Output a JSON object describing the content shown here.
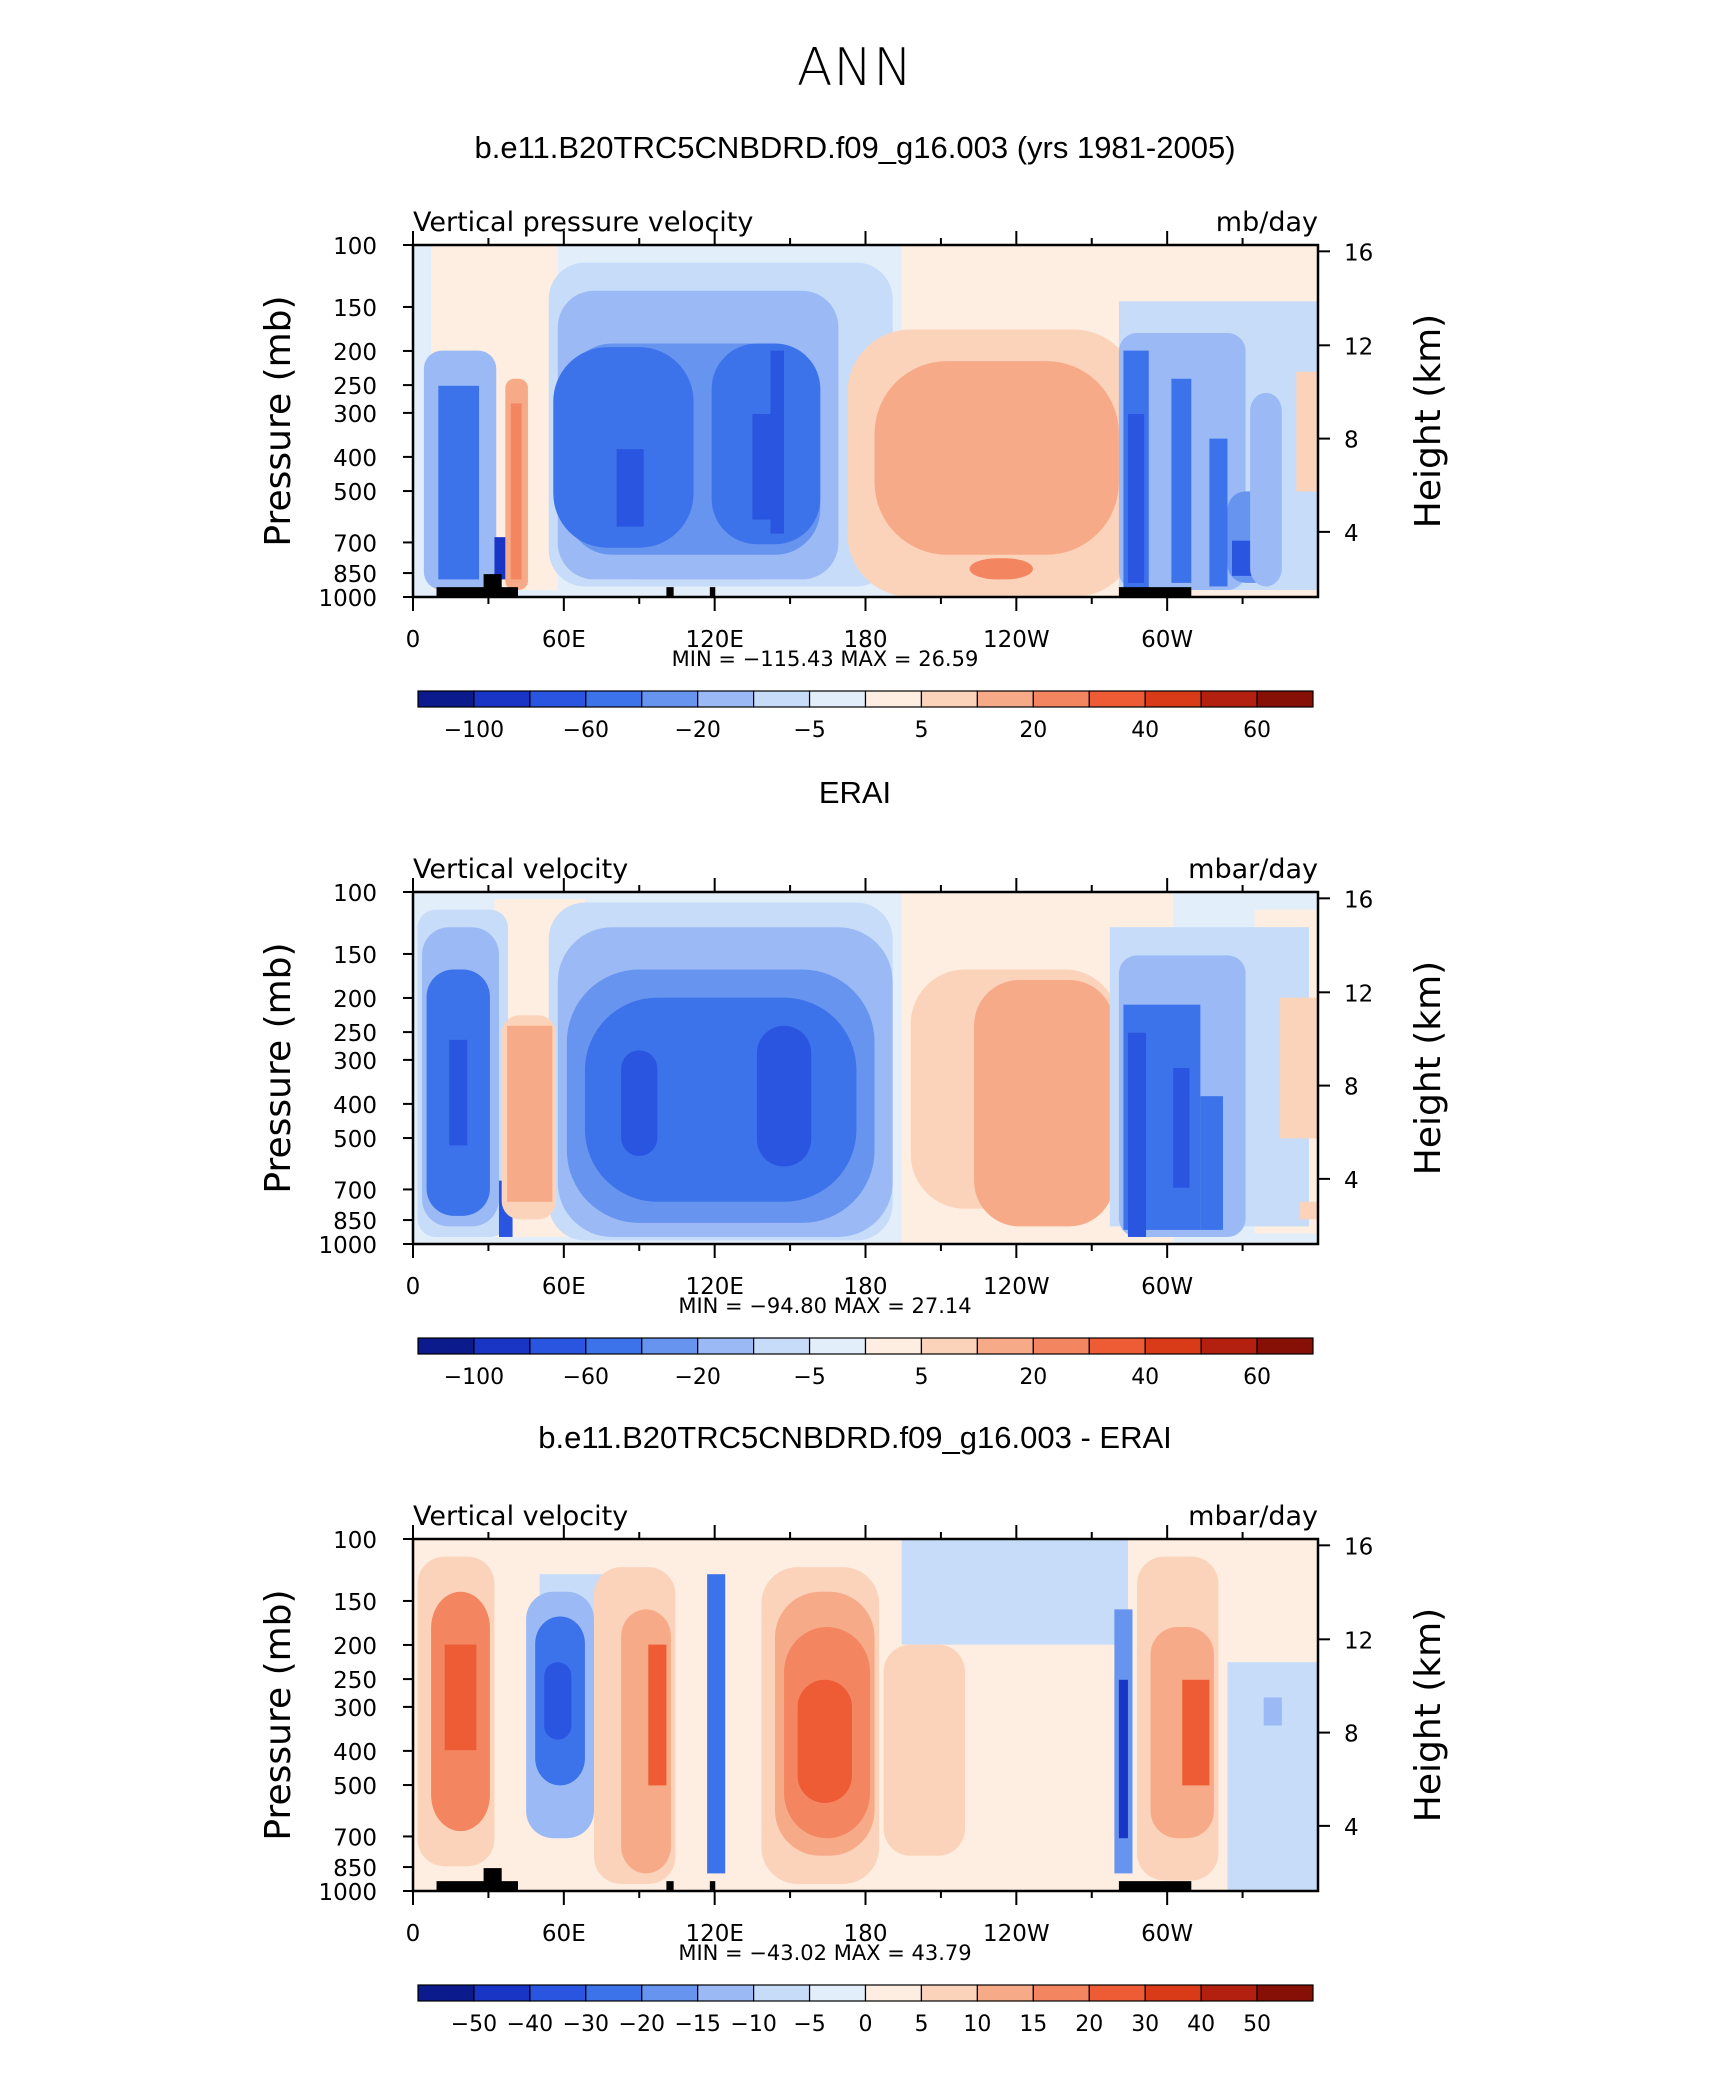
{
  "main_title": "ANN",
  "panels": [
    {
      "title": "b.e11.B20TRC5CNBDRD.f09_g16.003 (yrs 1981-2005)",
      "left_label": "Vertical pressure velocity",
      "right_label": "mb/day",
      "minmax": "MIN = −115.43   MAX =   26.59",
      "cbar_labels": [
        "−100",
        "−60",
        "−20",
        "−5",
        "5",
        "20",
        "40",
        "60"
      ]
    },
    {
      "title": "ERAI",
      "left_label": "Vertical velocity",
      "right_label": "mbar/day",
      "minmax": "MIN = −94.80   MAX =   27.14",
      "cbar_labels": [
        "−100",
        "−60",
        "−20",
        "−5",
        "5",
        "20",
        "40",
        "60"
      ]
    },
    {
      "title": "b.e11.B20TRC5CNBDRD.f09_g16.003 - ERAI",
      "left_label": "Vertical velocity",
      "right_label": "mbar/day",
      "minmax": "MIN = −43.02   MAX =   43.79",
      "cbar_labels": [
        "−50",
        "−40",
        "−30",
        "−20",
        "−15",
        "−10",
        "−5",
        "0",
        "5",
        "10",
        "15",
        "20",
        "30",
        "40",
        "50"
      ]
    }
  ],
  "axes": {
    "y_ticks": [
      "100",
      "150",
      "200",
      "250",
      "300",
      "400",
      "500",
      "700",
      "850",
      "1000"
    ],
    "y2_ticks": [
      "16",
      "12",
      "8",
      "4"
    ],
    "x_ticks": [
      "0",
      "60E",
      "120E",
      "180",
      "120W",
      "60W"
    ],
    "y_label": "Pressure (mb)",
    "y2_label": "Height (km)"
  },
  "colors": {
    "colorbar_16": [
      "#0c1b8c",
      "#1935c6",
      "#2a55e0",
      "#3d73ea",
      "#6794ee",
      "#9bbaf5",
      "#c6dcf8",
      "#e3eefb",
      "#fdeee1",
      "#fbd3bb",
      "#f7aa88",
      "#f38660",
      "#ed5c35",
      "#d93a18",
      "#b3200f",
      "#871006"
    ]
  },
  "chart_data": [
    {
      "type": "heatmap",
      "title": "b.e11.B20TRC5CNBDRD.f09_g16.003 (yrs 1981-2005)",
      "xlabel": "",
      "ylabel": "Pressure (mb)",
      "y2label": "Height (km)",
      "xlim": [
        0,
        360
      ],
      "ylim": [
        1000,
        100
      ],
      "y_scale": "log",
      "units": "mb/day",
      "min": -115.43,
      "max": 26.59,
      "levels": [
        -100,
        -60,
        -20,
        -5,
        5,
        20,
        40,
        60
      ],
      "features": [
        {
          "lon": 20,
          "p": 500,
          "value": -30
        },
        {
          "lon": 38,
          "p": 400,
          "value": 20
        },
        {
          "lon": 90,
          "p": 350,
          "value": -40
        },
        {
          "lon": 140,
          "p": 400,
          "value": -40
        },
        {
          "lon": 240,
          "p": 400,
          "value": 20
        },
        {
          "lon": 240,
          "p": 850,
          "value": 40
        },
        {
          "lon": 290,
          "p": 500,
          "value": -60
        },
        {
          "lon": 350,
          "p": 400,
          "value": 5
        }
      ]
    },
    {
      "type": "heatmap",
      "title": "ERAI",
      "xlabel": "",
      "ylabel": "Pressure (mb)",
      "y2label": "Height (km)",
      "xlim": [
        0,
        360
      ],
      "ylim": [
        1000,
        100
      ],
      "y_scale": "log",
      "units": "mbar/day",
      "min": -94.8,
      "max": 27.14,
      "levels": [
        -100,
        -60,
        -20,
        -5,
        5,
        20,
        40,
        60
      ],
      "features": [
        {
          "lon": 20,
          "p": 450,
          "value": -60
        },
        {
          "lon": 45,
          "p": 450,
          "value": 20
        },
        {
          "lon": 95,
          "p": 450,
          "value": -60
        },
        {
          "lon": 150,
          "p": 450,
          "value": -60
        },
        {
          "lon": 240,
          "p": 450,
          "value": 20
        },
        {
          "lon": 290,
          "p": 500,
          "value": -60
        },
        {
          "lon": 355,
          "p": 400,
          "value": 5
        }
      ]
    },
    {
      "type": "heatmap",
      "title": "b.e11.B20TRC5CNBDRD.f09_g16.003 - ERAI",
      "xlabel": "",
      "ylabel": "Pressure (mb)",
      "y2label": "Height (km)",
      "xlim": [
        0,
        360
      ],
      "ylim": [
        1000,
        100
      ],
      "y_scale": "log",
      "units": "mbar/day",
      "min": -43.02,
      "max": 43.79,
      "levels": [
        -50,
        -40,
        -30,
        -20,
        -15,
        -10,
        -5,
        0,
        5,
        10,
        15,
        20,
        30,
        40,
        50
      ],
      "features": [
        {
          "lon": 20,
          "p": 350,
          "value": 20
        },
        {
          "lon": 60,
          "p": 350,
          "value": -20
        },
        {
          "lon": 95,
          "p": 350,
          "value": 20
        },
        {
          "lon": 118,
          "p": 450,
          "value": -15
        },
        {
          "lon": 165,
          "p": 400,
          "value": 30
        },
        {
          "lon": 205,
          "p": 400,
          "value": 5
        },
        {
          "lon": 278,
          "p": 500,
          "value": -30
        },
        {
          "lon": 300,
          "p": 400,
          "value": 20
        },
        {
          "lon": 340,
          "p": 800,
          "value": -5
        }
      ]
    }
  ]
}
